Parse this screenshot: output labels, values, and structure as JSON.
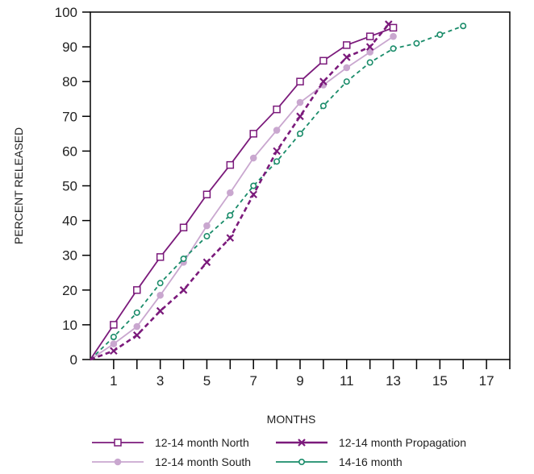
{
  "chart_data": {
    "type": "line",
    "xlabel": "MONTHS",
    "ylabel": "PERCENT RELEASED",
    "xlim": [
      0,
      18
    ],
    "ylim": [
      0,
      100
    ],
    "x_ticks": [
      1,
      3,
      5,
      7,
      9,
      11,
      13,
      15,
      17
    ],
    "y_ticks": [
      0,
      10,
      20,
      30,
      40,
      50,
      60,
      70,
      80,
      90,
      100
    ],
    "grid": false,
    "legend_position": "bottom",
    "series": [
      {
        "name": "12-14 month North",
        "color": "#7b1a7b",
        "line_style": "solid",
        "marker": "open-square",
        "x": [
          0,
          1,
          2,
          3,
          4,
          5,
          6,
          7,
          8,
          9,
          10,
          11,
          12,
          13
        ],
        "y": [
          0,
          10,
          20,
          29.5,
          38,
          47.5,
          56,
          65,
          72,
          80,
          86,
          90.5,
          93,
          95.5
        ]
      },
      {
        "name": "12-14 month South",
        "color": "#c9a7cf",
        "line_style": "solid",
        "marker": "filled-circle",
        "x": [
          0,
          1,
          2,
          3,
          4,
          5,
          6,
          7,
          8,
          9,
          10,
          11,
          12,
          13
        ],
        "y": [
          0,
          4.5,
          9.5,
          18.5,
          28,
          38.5,
          48,
          58,
          66,
          74,
          79,
          84,
          88.5,
          93
        ]
      },
      {
        "name": "12-14 month Propagation",
        "color": "#7b1a7b",
        "line_style": "dashed",
        "marker": "x",
        "x": [
          0,
          1,
          2,
          3,
          4,
          5,
          6,
          7,
          8,
          9,
          10,
          11,
          12,
          12.8
        ],
        "y": [
          0,
          2.5,
          7,
          14,
          20,
          28,
          35,
          47.5,
          60,
          70,
          80,
          87,
          90,
          96.5
        ]
      },
      {
        "name": "14-16 month",
        "color": "#1a8c6a",
        "line_style": "dashed",
        "marker": "open-circle",
        "x": [
          0,
          1,
          2,
          3,
          4,
          5,
          6,
          7,
          8,
          9,
          10,
          11,
          12,
          13,
          14,
          15,
          16
        ],
        "y": [
          0,
          6.5,
          13.5,
          22,
          29,
          35.5,
          41.5,
          50,
          57,
          65,
          73,
          80,
          85.5,
          89.5,
          91,
          93.5,
          96
        ]
      }
    ]
  }
}
